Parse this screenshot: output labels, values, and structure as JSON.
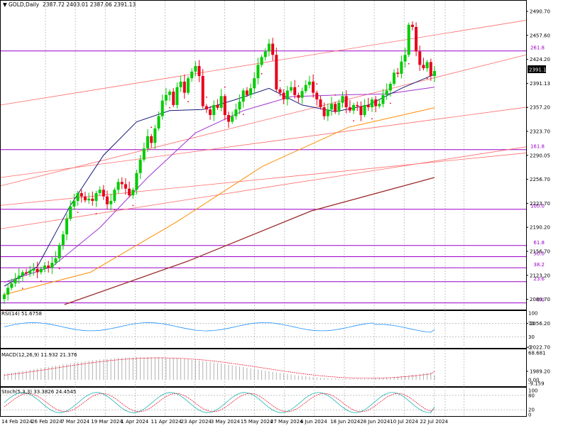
{
  "header": {
    "symbol": "GOLD,Daily",
    "ohlc": "2387.72 2403.01 2387.06 2391.13"
  },
  "price_label": "2391.13",
  "colors": {
    "bull": "#00cc00",
    "bear": "#e8001c",
    "fib_line": "#9b00c8",
    "trend_line": "#ff6b6b",
    "ma_short": "#1a1a7a",
    "ma_mid": "#a033d0",
    "ma_long": "#ff8c00",
    "ma_200": "#9c2a2a",
    "sar": "#e8001c",
    "rsi_line": "#1e90ff",
    "macd_hist": "#b0b0b0",
    "macd_signal": "#e8001c",
    "stoch_main": "#1fb5b5",
    "stoch_signal": "#e8001c",
    "grid": "#a0a0a0"
  },
  "chart_data": {
    "type": "candlestick",
    "symbol": "GOLD",
    "timeframe": "Daily",
    "y_axis": {
      "ticks": [
        "2490.70",
        "2457.60",
        "2424.20",
        "2391.13",
        "2357.20",
        "2323.70",
        "2290.05",
        "2256.70",
        "2223.70",
        "2190.20",
        "2156.70",
        "2123.20",
        "2089.70",
        "2056.20",
        "2022.70",
        "1989.20"
      ],
      "range": [
        1972,
        2498
      ]
    },
    "x_axis": {
      "labels": [
        "14 Feb 2024",
        "26 Feb 2024",
        "7 Mar 2024",
        "19 Mar 2024",
        "1 Apr 2024",
        "11 Apr 2024",
        "23 Apr 2024",
        "3 May 2024",
        "15 May 2024",
        "27 May 2024",
        "6 Jun 2024",
        "18 Jun 2024",
        "28 Jun 2024",
        "10 Jul 2024",
        "22 Jul 2024"
      ]
    },
    "fibonacci": [
      {
        "label": "261.8",
        "price": 2427
      },
      {
        "label": "161.8",
        "price": 2250
      },
      {
        "label": "100.0",
        "price": 2143
      },
      {
        "label": "61.8",
        "price": 2078
      },
      {
        "label": "50.0",
        "price": 2058
      },
      {
        "label": "38.2",
        "price": 2038
      },
      {
        "label": "23.6",
        "price": 2013
      },
      {
        "label": "0.0",
        "price": 1975
      }
    ],
    "closes": [
      1990,
      2002,
      2010,
      2018,
      2024,
      2030,
      2028,
      2033,
      2036,
      2030,
      2036,
      2042,
      2038,
      2047,
      2055,
      2079,
      2098,
      2126,
      2148,
      2158,
      2172,
      2166,
      2159,
      2162,
      2158,
      2172,
      2178,
      2166,
      2152,
      2158,
      2178,
      2192,
      2188,
      2180,
      2168,
      2178,
      2208,
      2232,
      2252,
      2274,
      2262,
      2288,
      2310,
      2338,
      2348,
      2354,
      2330,
      2362,
      2372,
      2352,
      2378,
      2390,
      2400,
      2382,
      2328,
      2322,
      2312,
      2330,
      2325,
      2346,
      2312,
      2300,
      2310,
      2322,
      2336,
      2356,
      2348,
      2360,
      2378,
      2402,
      2416,
      2426,
      2440,
      2420,
      2358,
      2352,
      2340,
      2356,
      2362,
      2348,
      2343,
      2355,
      2366,
      2372,
      2352,
      2340,
      2326,
      2310,
      2322,
      2332,
      2318,
      2334,
      2346,
      2326,
      2320,
      2330,
      2328,
      2312,
      2330,
      2326,
      2340,
      2328,
      2332,
      2348,
      2356,
      2368,
      2388,
      2386,
      2408,
      2420,
      2474,
      2470,
      2426,
      2402,
      2396,
      2407,
      2382,
      2391
    ],
    "ma_short": [
      2005,
      2040,
      2150,
      2240,
      2300,
      2320,
      2322,
      2340,
      2360,
      2330,
      2318,
      2330,
      2360,
      2385
    ],
    "ma_mid": [
      2012,
      2040,
      2110,
      2200,
      2280,
      2320,
      2345,
      2348,
      2350,
      2362
    ],
    "ma_long": [
      1990,
      2030,
      2120,
      2220,
      2290,
      2325
    ],
    "ma_200": [
      1972,
      2050,
      2140,
      2200
    ],
    "rsi": {
      "label": "RSI(14) 51.6758",
      "value": 51.6758,
      "levels": [
        70,
        30
      ],
      "ticks": [
        "100",
        "70",
        "30",
        "0"
      ]
    },
    "macd": {
      "label": "MACD(12,26,9) 11.932 21.376",
      "macd": 11.932,
      "signal": 21.376,
      "ticks": [
        "68.681",
        "0.00",
        "-9.159"
      ]
    },
    "stochastic": {
      "label": "Stoch(5,3,3) 33.3826 24.4545",
      "k": 33.3826,
      "d": 24.4545,
      "ticks": [
        "100",
        "80",
        "20",
        "0"
      ]
    }
  }
}
